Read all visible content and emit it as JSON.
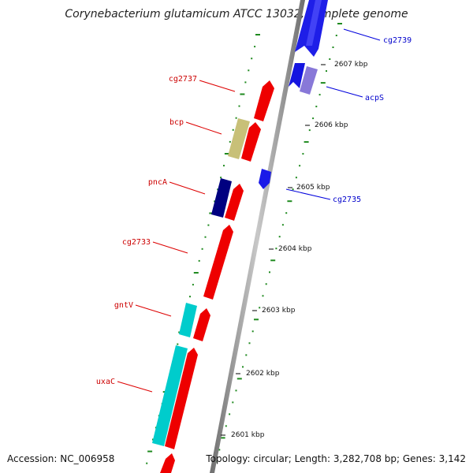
{
  "title": "Corynebacterium glutamicum ATCC 13032, complete genome",
  "accession": "Accession: NC_006958",
  "summary": "Topology: circular; Length: 3,282,708 bp; Genes: 3,142",
  "colors": {
    "backbone": "#9a9a9a",
    "forward_cds": "#ff0000",
    "reverse_cds": "#0000ff",
    "trna": "#00cccc",
    "rrna": "#c8c078",
    "misc_light": "#8a7fd0",
    "misc_dark": "#000080",
    "tick": "#228b22",
    "label_forward": "#cc0000",
    "label_reverse": "#0000cc"
  },
  "scale_ticks": [
    "2607 kbp",
    "2606 kbp",
    "2605 kbp",
    "2604 kbp",
    "2603 kbp",
    "2602 kbp",
    "2601 kbp"
  ],
  "genes_left": [
    {
      "label": "cg2737"
    },
    {
      "label": "bcp"
    },
    {
      "label": "pncA"
    },
    {
      "label": "cg2733"
    },
    {
      "label": "gntV"
    },
    {
      "label": "uxaC"
    }
  ],
  "genes_right": [
    {
      "label": "cg2739"
    },
    {
      "label": "acpS"
    },
    {
      "label": "cg2735"
    }
  ]
}
